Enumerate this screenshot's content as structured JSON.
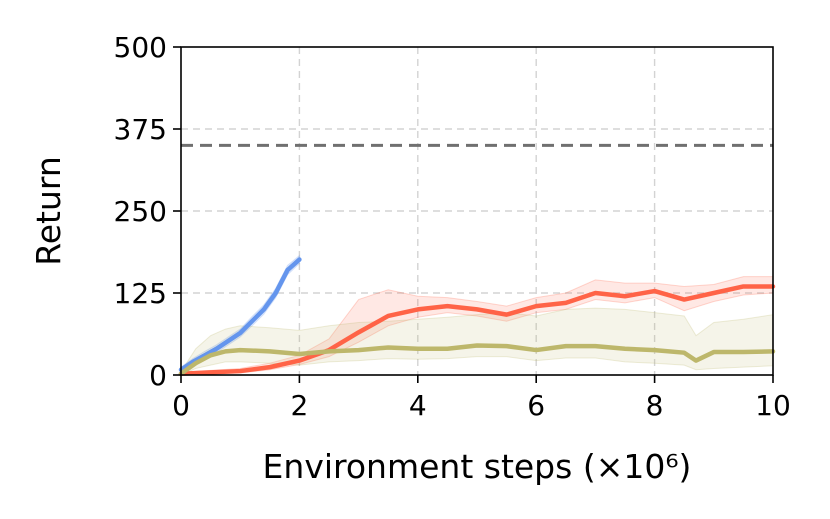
{
  "chart_data": {
    "type": "line",
    "title": "",
    "xlabel": "Environment steps (×10⁶)",
    "ylabel": "Return",
    "xlim": [
      0,
      10
    ],
    "ylim": [
      0,
      500
    ],
    "xticks": [
      0,
      2,
      4,
      6,
      8,
      10
    ],
    "yticks": [
      0,
      125,
      250,
      375,
      500
    ],
    "grid": true,
    "legend": "none",
    "reference_line": {
      "y": 350,
      "color": "#707070",
      "style": "dashed"
    },
    "series": [
      {
        "color": "#6495ED",
        "x": [
          0,
          0.2,
          0.4,
          0.6,
          0.8,
          1.0,
          1.2,
          1.4,
          1.6,
          1.8,
          2.0
        ],
        "y": [
          8,
          20,
          30,
          40,
          52,
          64,
          82,
          100,
          125,
          160,
          176
        ],
        "band_low": [
          4,
          15,
          24,
          34,
          46,
          58,
          75,
          93,
          118,
          153,
          170
        ],
        "band_high": [
          12,
          25,
          36,
          46,
          58,
          70,
          89,
          107,
          132,
          167,
          182
        ]
      },
      {
        "color": "#FF6347",
        "x": [
          0,
          0.5,
          1.0,
          1.5,
          2.0,
          2.5,
          3.0,
          3.5,
          4.0,
          4.5,
          5.0,
          5.5,
          6.0,
          6.5,
          7.0,
          7.5,
          8.0,
          8.5,
          9.0,
          9.5,
          10.0
        ],
        "y": [
          2,
          4,
          6,
          12,
          22,
          38,
          65,
          90,
          100,
          105,
          100,
          92,
          105,
          110,
          125,
          120,
          128,
          115,
          125,
          135,
          135
        ],
        "band_low": [
          0,
          2,
          3,
          8,
          16,
          28,
          50,
          75,
          88,
          95,
          90,
          82,
          95,
          100,
          115,
          110,
          118,
          98,
          112,
          122,
          125
        ],
        "band_high": [
          4,
          7,
          10,
          18,
          30,
          55,
          115,
          130,
          120,
          118,
          112,
          105,
          118,
          125,
          145,
          140,
          140,
          135,
          138,
          150,
          150
        ]
      },
      {
        "color": "#BDB76B",
        "x": [
          0,
          0.25,
          0.5,
          0.75,
          1.0,
          1.5,
          2.0,
          2.5,
          3.0,
          3.5,
          4.0,
          4.5,
          5.0,
          5.5,
          6.0,
          6.5,
          7.0,
          7.5,
          8.0,
          8.5,
          8.7,
          9.0,
          9.5,
          10.0
        ],
        "y": [
          2,
          18,
          30,
          36,
          38,
          36,
          32,
          36,
          38,
          42,
          40,
          40,
          45,
          44,
          38,
          44,
          44,
          40,
          38,
          34,
          22,
          35,
          35,
          36
        ],
        "band_low": [
          0,
          10,
          15,
          20,
          20,
          18,
          15,
          20,
          22,
          25,
          24,
          25,
          28,
          28,
          22,
          26,
          26,
          20,
          18,
          15,
          8,
          10,
          12,
          14
        ],
        "band_high": [
          5,
          40,
          60,
          70,
          75,
          72,
          68,
          75,
          80,
          82,
          85,
          88,
          92,
          95,
          90,
          100,
          102,
          100,
          95,
          90,
          60,
          80,
          85,
          92
        ]
      }
    ]
  }
}
